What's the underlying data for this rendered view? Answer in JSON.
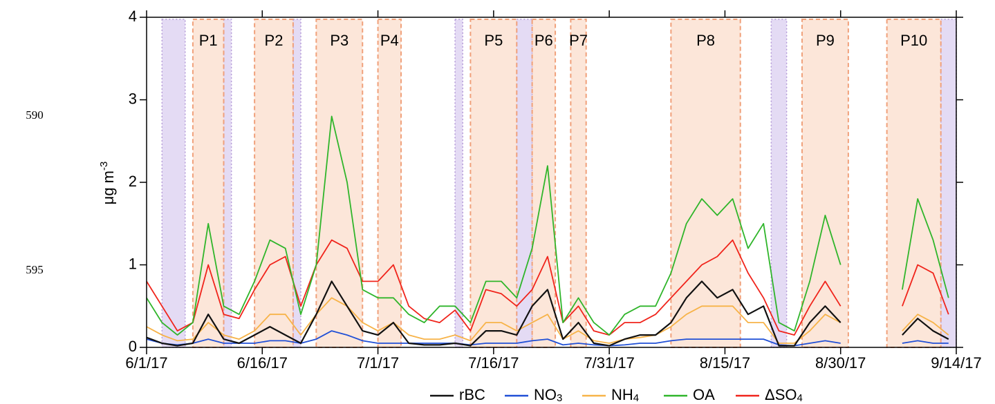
{
  "line_numbers": [
    "590",
    "595"
  ],
  "chart_data": {
    "type": "line",
    "y_label": "μg m-3",
    "x": [
      "6/1/17",
      "6/3/17",
      "6/5/17",
      "6/7/17",
      "6/9/17",
      "6/11/17",
      "6/13/17",
      "6/15/17",
      "6/17/17",
      "6/19/17",
      "6/21/17",
      "6/23/17",
      "6/25/17",
      "6/27/17",
      "6/29/17",
      "7/1/17",
      "7/3/17",
      "7/5/17",
      "7/7/17",
      "7/9/17",
      "7/11/17",
      "7/13/17",
      "7/15/17",
      "7/17/17",
      "7/19/17",
      "7/21/17",
      "7/23/17",
      "7/25/17",
      "7/27/17",
      "7/29/17",
      "7/31/17",
      "8/2/17",
      "8/4/17",
      "8/6/17",
      "8/8/17",
      "8/10/17",
      "8/12/17",
      "8/14/17",
      "8/16/17",
      "8/18/17",
      "8/20/17",
      "8/22/17",
      "8/24/17",
      "8/26/17",
      "8/28/17",
      "8/30/17",
      "9/1/17",
      "9/3/17",
      "9/5/17",
      "9/7/17",
      "9/9/17",
      "9/11/17",
      "9/13/17"
    ],
    "series": [
      {
        "name": "rBC",
        "color": "#111111",
        "values": [
          0.12,
          0.05,
          0.02,
          0.05,
          0.4,
          0.1,
          0.05,
          0.15,
          0.25,
          0.15,
          0.05,
          0.4,
          0.8,
          0.5,
          0.2,
          0.15,
          0.3,
          0.05,
          0.03,
          0.03,
          0.05,
          0.02,
          0.2,
          0.2,
          0.15,
          0.5,
          0.7,
          0.1,
          0.3,
          0.05,
          0.02,
          0.1,
          0.15,
          0.15,
          0.3,
          0.6,
          0.8,
          0.6,
          0.7,
          0.4,
          0.5,
          0.02,
          0.02,
          0.3,
          0.5,
          0.3,
          null,
          null,
          null,
          0.15,
          0.35,
          0.2,
          0.1
        ]
      },
      {
        "name": "NO3",
        "color": "#1f4fd6",
        "values": [
          0.1,
          0.05,
          0.03,
          0.05,
          0.1,
          0.05,
          0.05,
          0.05,
          0.08,
          0.08,
          0.05,
          0.1,
          0.2,
          0.15,
          0.08,
          0.05,
          0.05,
          0.05,
          0.05,
          0.05,
          0.05,
          0.03,
          0.05,
          0.05,
          0.05,
          0.08,
          0.1,
          0.03,
          0.05,
          0.03,
          0.02,
          0.03,
          0.05,
          0.05,
          0.08,
          0.1,
          0.1,
          0.1,
          0.1,
          0.1,
          0.1,
          0.03,
          0.02,
          0.05,
          0.08,
          0.05,
          null,
          null,
          null,
          0.05,
          0.08,
          0.05,
          0.05
        ]
      },
      {
        "name": "NH4",
        "color": "#f7b348",
        "values": [
          0.25,
          0.15,
          0.08,
          0.1,
          0.3,
          0.15,
          0.1,
          0.2,
          0.4,
          0.4,
          0.15,
          0.4,
          0.6,
          0.5,
          0.3,
          0.2,
          0.3,
          0.15,
          0.1,
          0.1,
          0.15,
          0.08,
          0.3,
          0.3,
          0.2,
          0.3,
          0.4,
          0.1,
          0.2,
          0.08,
          0.05,
          0.1,
          0.12,
          0.15,
          0.25,
          0.4,
          0.5,
          0.5,
          0.5,
          0.3,
          0.3,
          0.05,
          0.05,
          0.2,
          0.4,
          0.3,
          null,
          null,
          null,
          0.2,
          0.4,
          0.3,
          0.15
        ]
      },
      {
        "name": "OA",
        "color": "#2fb52a",
        "values": [
          0.6,
          0.3,
          0.15,
          0.3,
          1.5,
          0.5,
          0.4,
          0.8,
          1.3,
          1.2,
          0.4,
          1.0,
          2.8,
          2.0,
          0.7,
          0.6,
          0.6,
          0.4,
          0.3,
          0.5,
          0.5,
          0.3,
          0.8,
          0.8,
          0.6,
          1.2,
          2.2,
          0.3,
          0.6,
          0.3,
          0.15,
          0.4,
          0.5,
          0.5,
          0.9,
          1.5,
          1.8,
          1.6,
          1.8,
          1.2,
          1.5,
          0.3,
          0.2,
          0.8,
          1.6,
          1.0,
          null,
          null,
          null,
          0.7,
          1.8,
          1.3,
          0.6
        ]
      },
      {
        "name": "ΔSO4",
        "color": "#f0241b",
        "values": [
          0.8,
          0.5,
          0.2,
          0.3,
          1.0,
          0.4,
          0.35,
          0.7,
          1.0,
          1.1,
          0.5,
          1.0,
          1.3,
          1.2,
          0.8,
          0.8,
          1.0,
          0.5,
          0.35,
          0.3,
          0.45,
          0.2,
          0.7,
          0.65,
          0.5,
          0.7,
          1.1,
          0.3,
          0.5,
          0.2,
          0.15,
          0.3,
          0.3,
          0.4,
          0.6,
          0.8,
          1.0,
          1.1,
          1.3,
          0.9,
          0.6,
          0.2,
          0.15,
          0.5,
          0.8,
          0.5,
          null,
          null,
          null,
          0.5,
          1.0,
          0.9,
          0.4
        ]
      }
    ],
    "periods": [
      {
        "label": "P1",
        "start": "6/7/17",
        "end": "6/11/17"
      },
      {
        "label": "P2",
        "start": "6/15/17",
        "end": "6/20/17"
      },
      {
        "label": "P3",
        "start": "6/23/17",
        "end": "6/29/17"
      },
      {
        "label": "P4",
        "start": "7/1/17",
        "end": "7/4/17"
      },
      {
        "label": "P5",
        "start": "7/13/17",
        "end": "7/19/17"
      },
      {
        "label": "P6",
        "start": "7/21/17",
        "end": "7/24/17"
      },
      {
        "label": "P7",
        "start": "7/26/17",
        "end": "7/28/17"
      },
      {
        "label": "P8",
        "start": "8/8/17",
        "end": "8/17/17"
      },
      {
        "label": "P9",
        "start": "8/25/17",
        "end": "8/31/17"
      },
      {
        "label": "P10",
        "start": "9/5/17",
        "end": "9/12/17"
      }
    ],
    "shaded_periods": [
      {
        "start": "6/3/17",
        "end": "6/6/17"
      },
      {
        "start": "6/11/17",
        "end": "6/12/17"
      },
      {
        "start": "6/20/17",
        "end": "6/21/17"
      },
      {
        "start": "7/11/17",
        "end": "7/12/17"
      },
      {
        "start": "7/19/17",
        "end": "7/21/17"
      },
      {
        "start": "8/21/17",
        "end": "8/23/17"
      },
      {
        "start": "9/12/17",
        "end": "9/14/17"
      }
    ],
    "xlim": [
      "6/1/17",
      "9/14/17"
    ],
    "xticks": [
      "6/1/17",
      "6/16/17",
      "7/1/17",
      "7/16/17",
      "7/31/17",
      "8/15/17",
      "8/30/17",
      "9/14/17"
    ],
    "ylim": [
      0,
      4
    ],
    "yticks": [
      0,
      1,
      2,
      3,
      4
    ]
  }
}
